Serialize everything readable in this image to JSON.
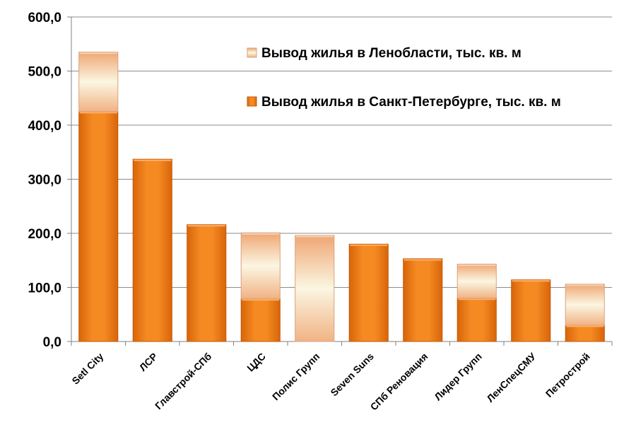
{
  "chart_data": {
    "type": "bar",
    "stacked": true,
    "categories": [
      "Setl City",
      "ЛСР",
      "Главстрой-СПб",
      "ЦДС",
      "Полис Групп",
      "Seven Suns",
      "СПб Реновация",
      "Лидер Групп",
      "ЛенСпецСМУ",
      "Петрострой"
    ],
    "series": [
      {
        "name": "Вывод жилья в Санкт-Петербурге, тыс. кв. м",
        "color": "#F07D14",
        "values": [
          425,
          337,
          216,
          79,
          0,
          180,
          153,
          80,
          114,
          30
        ]
      },
      {
        "name": "Вывод жилья в Ленобласти, тыс. кв. м",
        "color": "#F5E6CC",
        "values": [
          110,
          0,
          0,
          122,
          196,
          0,
          0,
          63,
          0,
          76
        ]
      }
    ],
    "y_ticks": [
      "0,0",
      "100,0",
      "200,0",
      "300,0",
      "400,0",
      "500,0",
      "600,0"
    ],
    "ylim": [
      0,
      600
    ],
    "grid": true,
    "legend_position": "top-right",
    "title": "",
    "xlabel": "",
    "ylabel": ""
  }
}
